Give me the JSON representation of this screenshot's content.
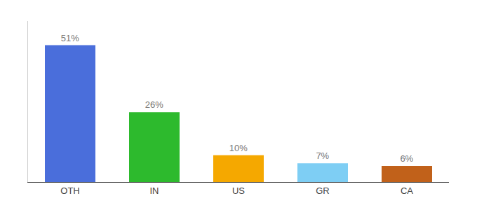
{
  "chart_data": {
    "type": "bar",
    "categories": [
      "OTH",
      "IN",
      "US",
      "GR",
      "CA"
    ],
    "values": [
      51,
      26,
      10,
      7,
      6
    ],
    "value_labels": [
      "51%",
      "26%",
      "10%",
      "7%",
      "6%"
    ],
    "colors": [
      "#4a6edb",
      "#2dba2d",
      "#f5a800",
      "#7ecef4",
      "#c1611a"
    ],
    "ylim": [
      0,
      60
    ],
    "grid": false,
    "data_labels": true,
    "tick_labels": "x"
  }
}
